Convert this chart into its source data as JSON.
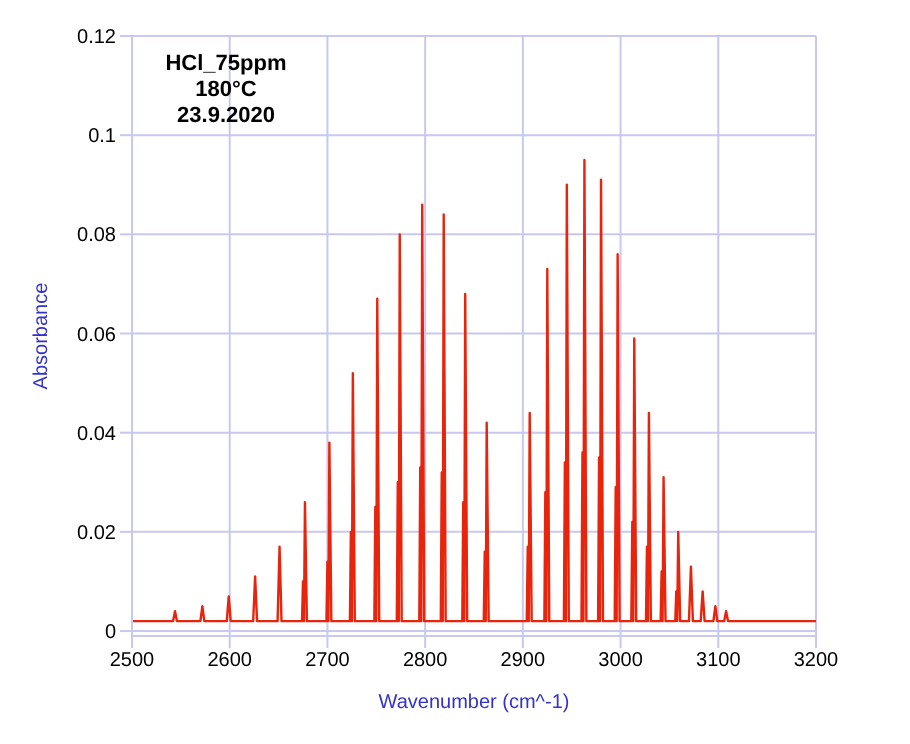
{
  "chart_data": {
    "type": "line",
    "xlabel": "Wavenumber (cm^-1)",
    "ylabel": "Absorbance",
    "annotations": [
      "HCl_75ppm",
      "180°C",
      "23.9.2020"
    ],
    "x": [
      2500,
      2542,
      2544,
      2546,
      2570,
      2572,
      2574,
      2597,
      2599,
      2601,
      2624,
      2626,
      2628,
      2649,
      2651,
      2653,
      2674,
      2675,
      2676,
      2677,
      2679,
      2699,
      2700,
      2701,
      2702,
      2704,
      2723,
      2724,
      2725,
      2726,
      2728,
      2748,
      2749,
      2750,
      2751,
      2753,
      2771,
      2772,
      2773,
      2774,
      2776,
      2794,
      2795,
      2796,
      2797,
      2799,
      2816,
      2817,
      2818,
      2819,
      2821,
      2838,
      2839,
      2840,
      2841,
      2843,
      2860,
      2861,
      2862,
      2863,
      2865,
      2904,
      2905,
      2906,
      2907,
      2909,
      2922,
      2923,
      2924,
      2925,
      2927,
      2942,
      2943,
      2944,
      2945,
      2947,
      2960,
      2961,
      2962,
      2963,
      2965,
      2977,
      2978,
      2979,
      2980,
      2982,
      2994,
      2995,
      2996,
      2997,
      2999,
      3011,
      3012,
      3013,
      3014,
      3016,
      3026,
      3027,
      3028,
      3029,
      3031,
      3041,
      3042,
      3043,
      3044,
      3046,
      3056,
      3057,
      3058,
      3059,
      3061,
      3070,
      3072,
      3074,
      3082,
      3084,
      3086,
      3095,
      3097,
      3099,
      3106,
      3108,
      3110,
      3200
    ],
    "values": [
      0.002,
      0.002,
      0.004,
      0.002,
      0.002,
      0.005,
      0.002,
      0.002,
      0.007,
      0.002,
      0.002,
      0.011,
      0.002,
      0.002,
      0.017,
      0.002,
      0.002,
      0.01,
      0.002,
      0.026,
      0.002,
      0.002,
      0.014,
      0.002,
      0.038,
      0.002,
      0.002,
      0.02,
      0.002,
      0.052,
      0.002,
      0.002,
      0.025,
      0.002,
      0.067,
      0.002,
      0.002,
      0.03,
      0.002,
      0.08,
      0.002,
      0.002,
      0.033,
      0.002,
      0.086,
      0.002,
      0.002,
      0.032,
      0.002,
      0.084,
      0.002,
      0.002,
      0.026,
      0.002,
      0.068,
      0.002,
      0.002,
      0.016,
      0.002,
      0.042,
      0.002,
      0.002,
      0.017,
      0.002,
      0.044,
      0.002,
      0.002,
      0.028,
      0.002,
      0.073,
      0.002,
      0.002,
      0.034,
      0.002,
      0.09,
      0.002,
      0.002,
      0.036,
      0.002,
      0.095,
      0.002,
      0.002,
      0.035,
      0.002,
      0.091,
      0.002,
      0.002,
      0.029,
      0.002,
      0.076,
      0.002,
      0.002,
      0.022,
      0.002,
      0.059,
      0.002,
      0.002,
      0.017,
      0.002,
      0.044,
      0.002,
      0.002,
      0.012,
      0.002,
      0.031,
      0.002,
      0.002,
      0.008,
      0.002,
      0.02,
      0.002,
      0.002,
      0.013,
      0.002,
      0.002,
      0.008,
      0.002,
      0.002,
      0.005,
      0.002,
      0.002,
      0.004,
      0.002,
      0.002
    ],
    "color": "#e8250c",
    "xlim": [
      2500,
      3200
    ],
    "xticks": [
      2500,
      2600,
      2700,
      2800,
      2900,
      3000,
      3100,
      3200
    ],
    "ylim": [
      -0.001,
      0.12
    ],
    "yticks": [
      0,
      0.02,
      0.04,
      0.06,
      0.08,
      0.1,
      0.12
    ],
    "grid": true,
    "marker": "none",
    "line_style": "solid"
  }
}
